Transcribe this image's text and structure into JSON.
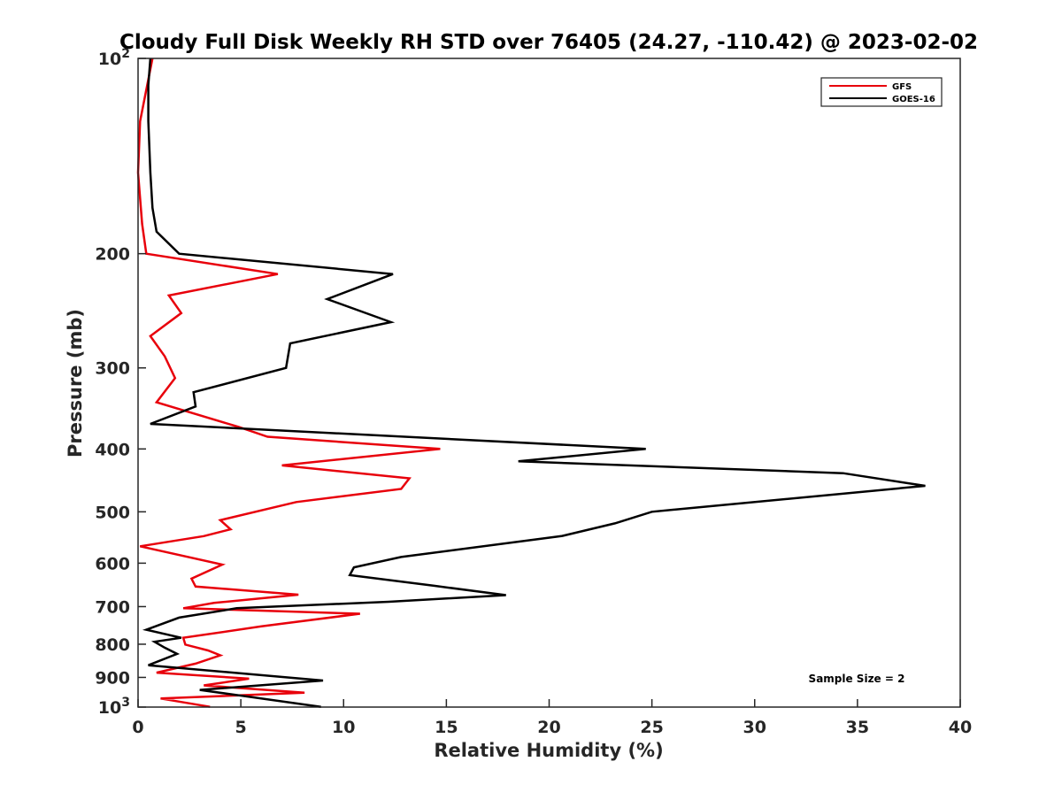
{
  "chart_data": {
    "type": "line",
    "title": "Cloudy Full Disk Weekly RH STD over 76405 (24.27, -110.42) @ 2023-02-02",
    "xlabel": "Relative Humidity (%)",
    "ylabel": "Pressure (mb)",
    "xlim": [
      0,
      40
    ],
    "ylim": [
      100,
      1000
    ],
    "y_scale": "log",
    "y_reversed": true,
    "x_ticks": [
      {
        "value": 0,
        "label": "0"
      },
      {
        "value": 5,
        "label": "5"
      },
      {
        "value": 10,
        "label": "10"
      },
      {
        "value": 15,
        "label": "15"
      },
      {
        "value": 20,
        "label": "20"
      },
      {
        "value": 25,
        "label": "25"
      },
      {
        "value": 30,
        "label": "30"
      },
      {
        "value": 35,
        "label": "35"
      },
      {
        "value": 40,
        "label": "40"
      }
    ],
    "y_ticks": [
      {
        "value": 100,
        "base": "10",
        "exp": "2"
      },
      {
        "value": 200,
        "label": "200"
      },
      {
        "value": 300,
        "label": "300"
      },
      {
        "value": 400,
        "label": "400"
      },
      {
        "value": 500,
        "label": "500"
      },
      {
        "value": 600,
        "label": "600"
      },
      {
        "value": 700,
        "label": "700"
      },
      {
        "value": 800,
        "label": "800"
      },
      {
        "value": 900,
        "label": "900"
      },
      {
        "value": 1000,
        "base": "10",
        "exp": "3"
      }
    ],
    "grid": false,
    "legend_position": "top-right",
    "series": [
      {
        "name": "GFS",
        "color": "#e8000b",
        "points": [
          [
            0.7,
            100
          ],
          [
            0.1,
            125
          ],
          [
            0.0,
            150
          ],
          [
            0.2,
            180
          ],
          [
            0.4,
            200
          ],
          [
            6.8,
            215
          ],
          [
            1.5,
            232
          ],
          [
            2.1,
            247
          ],
          [
            0.6,
            268
          ],
          [
            1.3,
            288
          ],
          [
            1.8,
            311
          ],
          [
            0.9,
            339
          ],
          [
            4.9,
            370
          ],
          [
            6.3,
            383
          ],
          [
            14.7,
            400
          ],
          [
            7.0,
            424
          ],
          [
            13.2,
            444
          ],
          [
            12.8,
            461
          ],
          [
            7.7,
            483
          ],
          [
            4.0,
            515
          ],
          [
            4.5,
            532
          ],
          [
            3.2,
            545
          ],
          [
            0.1,
            565
          ],
          [
            4.1,
            603
          ],
          [
            2.6,
            634
          ],
          [
            2.8,
            652
          ],
          [
            7.8,
            671
          ],
          [
            3.7,
            691
          ],
          [
            2.2,
            704
          ],
          [
            10.8,
            718
          ],
          [
            6.0,
            751
          ],
          [
            2.2,
            782
          ],
          [
            2.3,
            801
          ],
          [
            3.4,
            818
          ],
          [
            4.0,
            832
          ],
          [
            2.8,
            857
          ],
          [
            0.9,
            885
          ],
          [
            5.4,
            904
          ],
          [
            3.2,
            926
          ],
          [
            8.1,
            950
          ],
          [
            1.1,
            970
          ],
          [
            3.5,
            999
          ]
        ]
      },
      {
        "name": "GOES-16",
        "color": "#000000",
        "points": [
          [
            0.6,
            100
          ],
          [
            0.5,
            110
          ],
          [
            0.5,
            125
          ],
          [
            0.6,
            150
          ],
          [
            0.7,
            170
          ],
          [
            0.9,
            185
          ],
          [
            2.0,
            200
          ],
          [
            12.4,
            215
          ],
          [
            9.2,
            235
          ],
          [
            12.3,
            255
          ],
          [
            7.4,
            275
          ],
          [
            7.2,
            300
          ],
          [
            2.7,
            327
          ],
          [
            2.8,
            344
          ],
          [
            0.6,
            366
          ],
          [
            24.7,
            400
          ],
          [
            18.5,
            418
          ],
          [
            34.3,
            436
          ],
          [
            38.3,
            456
          ],
          [
            25.0,
            500
          ],
          [
            23.2,
            521
          ],
          [
            20.6,
            545
          ],
          [
            12.8,
            587
          ],
          [
            10.5,
            609
          ],
          [
            10.3,
            626
          ],
          [
            14.4,
            650
          ],
          [
            17.9,
            672
          ],
          [
            12.2,
            688
          ],
          [
            4.8,
            704
          ],
          [
            2.0,
            728
          ],
          [
            0.4,
            760
          ],
          [
            2.1,
            782
          ],
          [
            0.8,
            793
          ],
          [
            1.3,
            810
          ],
          [
            1.9,
            828
          ],
          [
            0.5,
            862
          ],
          [
            9.0,
            910
          ],
          [
            3.0,
            941
          ],
          [
            8.9,
            999
          ]
        ]
      }
    ],
    "annotations": [
      "Sample Size = 2"
    ]
  }
}
